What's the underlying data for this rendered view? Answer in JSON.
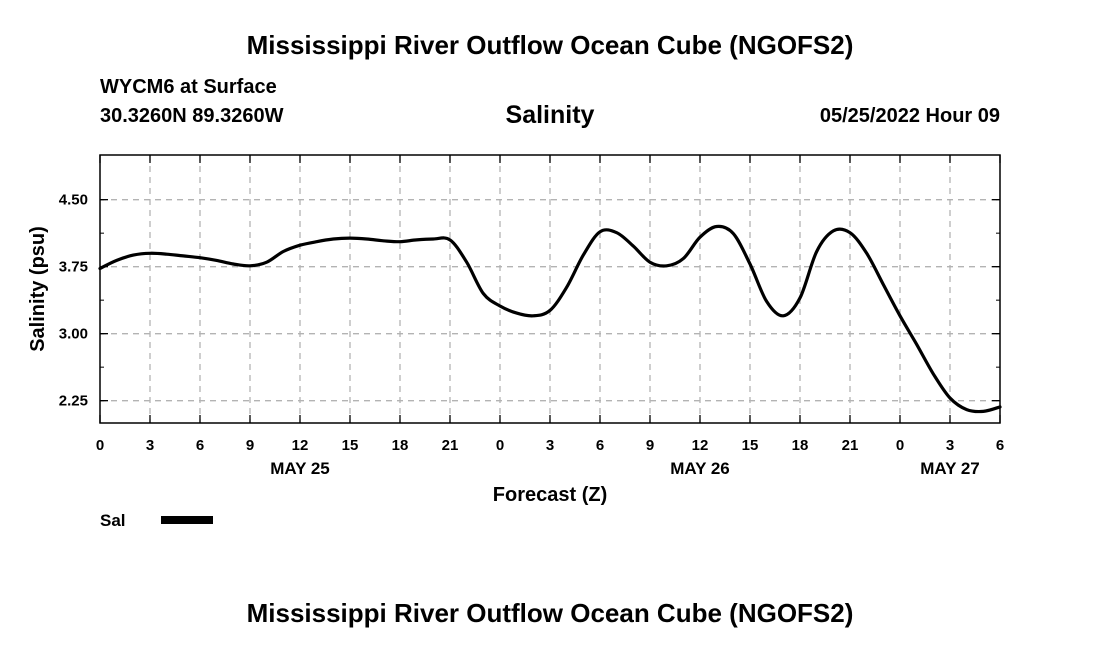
{
  "header": {
    "title": "Mississippi River Outflow Ocean Cube (NGOFS2)",
    "station": "WYCM6 at Surface",
    "coords": "30.3260N  89.3260W",
    "datetime": "05/25/2022 Hour 09",
    "footer_title": "Mississippi River Outflow Ocean Cube (NGOFS2)"
  },
  "chart_data": {
    "type": "line",
    "title": "Salinity",
    "xlabel": "Forecast (Z)",
    "ylabel": "Salinity (psu)",
    "xlim": [
      0,
      54
    ],
    "ylim": [
      2.0,
      5.0
    ],
    "grid": true,
    "x_ticks": [
      0,
      3,
      6,
      9,
      12,
      15,
      18,
      21,
      24,
      27,
      30,
      33,
      36,
      39,
      42,
      45,
      48,
      51,
      54
    ],
    "x_tick_labels": [
      "0",
      "3",
      "6",
      "9",
      "12",
      "15",
      "18",
      "21",
      "0",
      "3",
      "6",
      "9",
      "12",
      "15",
      "18",
      "21",
      "0",
      "3",
      "6"
    ],
    "y_ticks": [
      2.25,
      3.0,
      3.75,
      4.5
    ],
    "y_tick_labels": [
      "2.25",
      "3.00",
      "3.75",
      "4.50"
    ],
    "day_labels": [
      {
        "x": 12,
        "label": "MAY 25"
      },
      {
        "x": 36,
        "label": "MAY 26"
      },
      {
        "x": 51,
        "label": "MAY 27"
      }
    ],
    "legend": {
      "placement": "bottom-left",
      "label": "Sal",
      "color": "#000000"
    },
    "series": [
      {
        "name": "Sal",
        "color": "#000000",
        "x": [
          0,
          1,
          2,
          3,
          4,
          5,
          6,
          7,
          8,
          9,
          10,
          11,
          12,
          13,
          14,
          15,
          16,
          17,
          18,
          19,
          20,
          21,
          22,
          23,
          24,
          25,
          26,
          27,
          28,
          29,
          30,
          31,
          32,
          33,
          34,
          35,
          36,
          37,
          38,
          39,
          40,
          41,
          42,
          43,
          44,
          45,
          46,
          47,
          48,
          49,
          50,
          51,
          52,
          53,
          54
        ],
        "y": [
          3.73,
          3.82,
          3.88,
          3.9,
          3.89,
          3.87,
          3.85,
          3.82,
          3.78,
          3.76,
          3.8,
          3.92,
          3.99,
          4.03,
          4.06,
          4.07,
          4.06,
          4.04,
          4.03,
          4.05,
          4.06,
          4.05,
          3.8,
          3.45,
          3.31,
          3.23,
          3.2,
          3.26,
          3.52,
          3.88,
          4.14,
          4.13,
          3.98,
          3.8,
          3.76,
          3.84,
          4.08,
          4.2,
          4.12,
          3.78,
          3.36,
          3.2,
          3.4,
          3.92,
          4.15,
          4.13,
          3.9,
          3.55,
          3.2,
          2.88,
          2.55,
          2.28,
          2.15,
          2.13,
          2.18
        ]
      }
    ]
  }
}
